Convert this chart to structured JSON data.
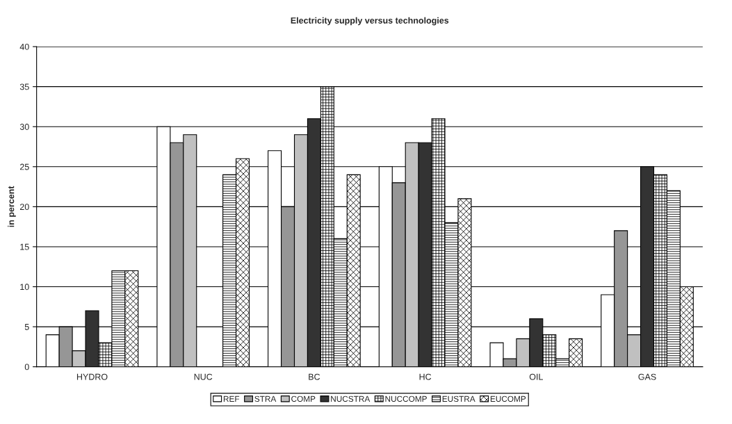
{
  "chart_data": {
    "type": "bar",
    "title": "Electricity supply versus technologies",
    "ylabel": "in percent",
    "categories": [
      "HYDRO",
      "NUC",
      "BC",
      "HC",
      "OIL",
      "GAS"
    ],
    "series": [
      {
        "name": "REF",
        "color": "#ffffff",
        "values": [
          4,
          30,
          27,
          25,
          3,
          9
        ]
      },
      {
        "name": "STRA",
        "color": "#969696",
        "values": [
          5,
          28,
          20,
          23,
          1,
          17
        ]
      },
      {
        "name": "COMP",
        "color": "#c0c0c0",
        "values": [
          2,
          29,
          29,
          28,
          3.5,
          4
        ]
      },
      {
        "name": "NUCSTRA",
        "color": "#333333",
        "values": [
          7,
          null,
          31,
          28,
          6,
          25
        ]
      },
      {
        "name": "NUCCOMP",
        "color": "#000000",
        "values": [
          3,
          null,
          35,
          31,
          4,
          24
        ]
      },
      {
        "name": "EUSTRA",
        "color": "#000000",
        "values": [
          12,
          24,
          16,
          18,
          1,
          22
        ]
      },
      {
        "name": "EUCOMP",
        "color": "#000000",
        "values": [
          12,
          26,
          24,
          21,
          3.5,
          10
        ]
      }
    ],
    "ylim": [
      0,
      40
    ],
    "yticks": [
      0,
      5,
      10,
      15,
      20,
      25,
      30,
      35,
      40
    ],
    "grid": "y",
    "legend": "bottom"
  }
}
